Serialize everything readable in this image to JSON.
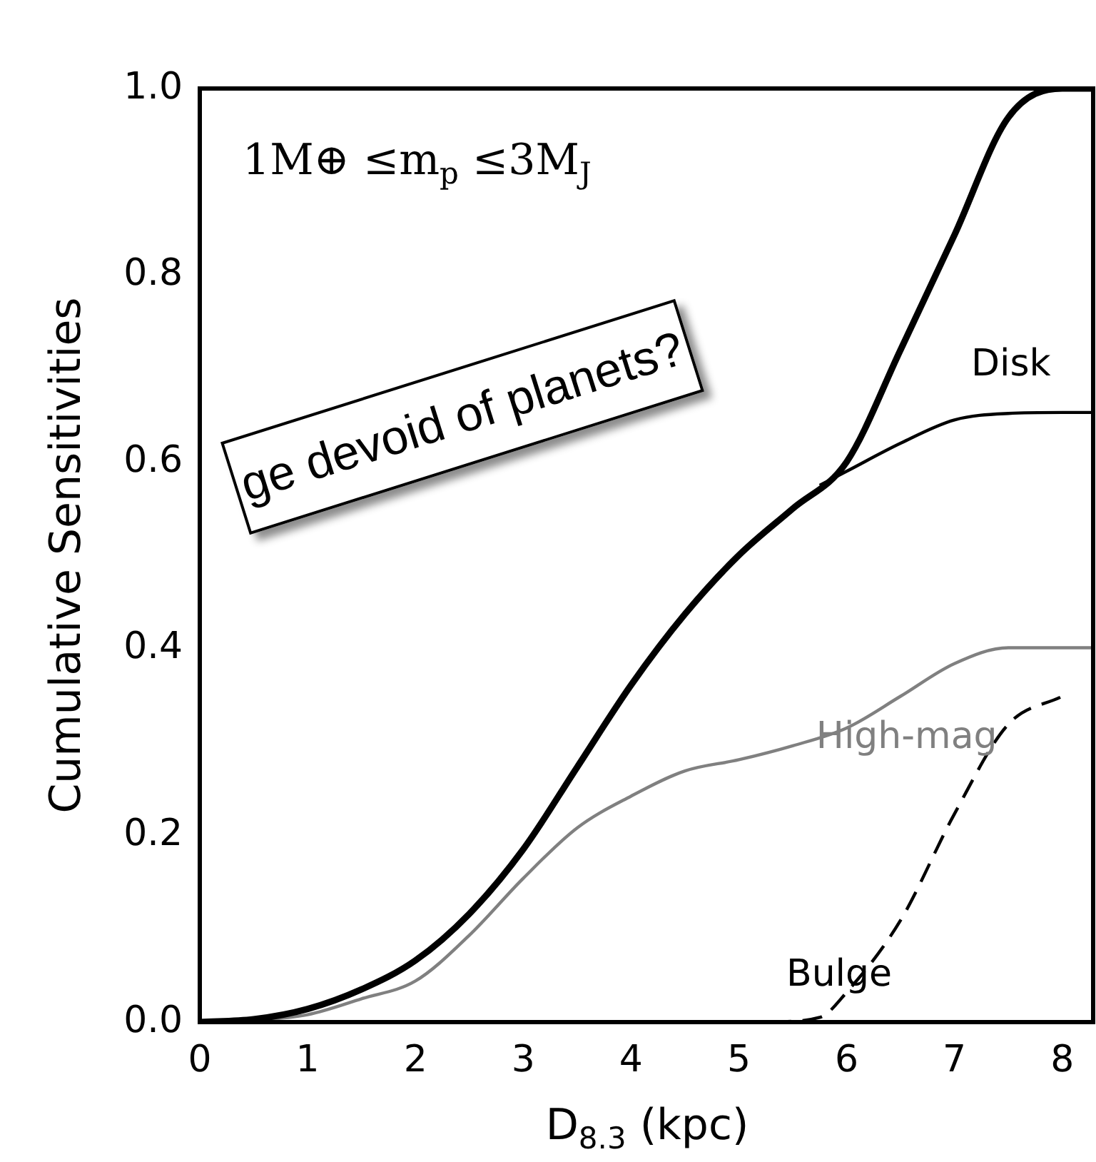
{
  "chart_data": {
    "type": "line",
    "xlabel": "D$_{8.3}$ (kpc)",
    "ylabel": "Cumulative Sensitivities",
    "annotations": [
      "1M⊕ ≤m$_{p}$ ≤3M$_{J}$",
      "ge devoid of planets?"
    ],
    "xlim": [
      0,
      8.3
    ],
    "xticks": [
      0,
      1,
      2,
      3,
      4,
      5,
      6,
      7,
      8
    ],
    "ylim": [
      0,
      1
    ],
    "yticks": [
      {
        "value": 0,
        "label": "0.0"
      },
      {
        "value": 0.2,
        "label": "0.2"
      },
      {
        "value": 0.4,
        "label": "0.4"
      },
      {
        "value": 0.6,
        "label": "0.6"
      },
      {
        "value": 0.8,
        "label": "0.8"
      },
      {
        "value": 1,
        "label": "1.0"
      }
    ],
    "grid": false,
    "legend": false,
    "marker": "none",
    "series": [
      {
        "color": "#000000",
        "x": [
          0,
          0.5,
          1,
          1.5,
          2,
          2.5,
          3,
          3.5,
          4,
          4.5,
          5,
          5.5,
          6,
          6.5,
          7,
          7.5,
          8,
          8.3
        ],
        "values": [
          0,
          0.003,
          0.014,
          0.035,
          0.066,
          0.116,
          0.185,
          0.273,
          0.361,
          0.437,
          0.5,
          0.55,
          0.6,
          0.72,
          0.843,
          0.969,
          1.0,
          1.0
        ]
      },
      {
        "name": "Disk",
        "color": "#000000",
        "x": [
          5.75,
          6,
          6.5,
          7,
          7.5,
          8,
          8.3
        ],
        "values": [
          0.575,
          0.59,
          0.62,
          0.645,
          0.652,
          0.653,
          0.653
        ]
      },
      {
        "name": "High-mag",
        "color": "#808080",
        "x": [
          0,
          0.5,
          1,
          1.5,
          2,
          2.5,
          3,
          3.5,
          4,
          4.5,
          5,
          5.5,
          6,
          6.5,
          7,
          7.5,
          8,
          8.3
        ],
        "values": [
          0,
          0.002,
          0.008,
          0.025,
          0.044,
          0.093,
          0.154,
          0.208,
          0.242,
          0.269,
          0.281,
          0.296,
          0.315,
          0.349,
          0.384,
          0.401,
          0.401,
          0.401
        ]
      },
      {
        "name": "Bulge",
        "color": "#000000",
        "line_style": "dashed",
        "x": [
          5.3,
          5.75,
          6,
          6.5,
          7,
          7.5,
          8
        ],
        "values": [
          0,
          0.005,
          0.032,
          0.109,
          0.223,
          0.319,
          0.349
        ]
      }
    ]
  }
}
